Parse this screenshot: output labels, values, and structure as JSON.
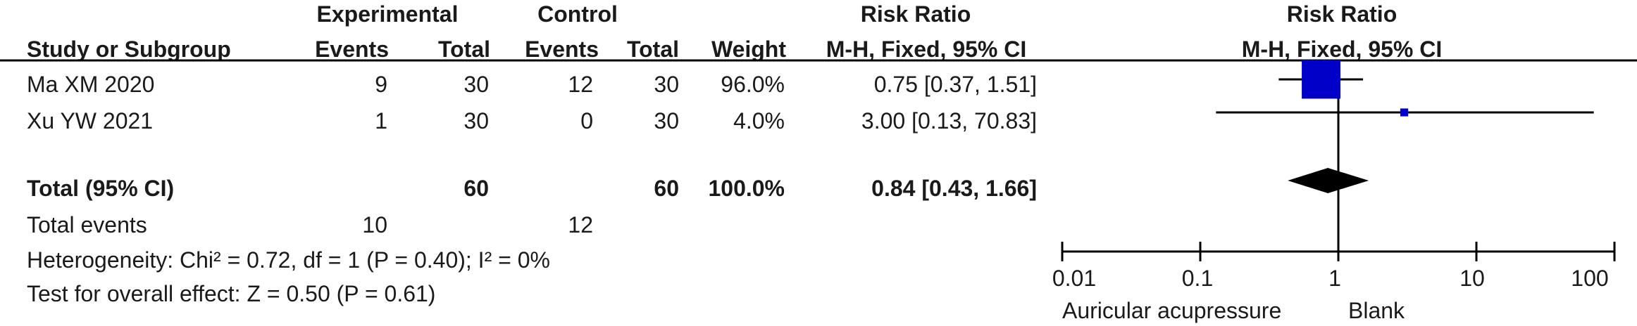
{
  "header": {
    "experimental_group": "Experimental",
    "control_group": "Control",
    "effect_measure": "Risk Ratio",
    "study_col": "Study or Subgroup",
    "events_label": "Events",
    "total_label": "Total",
    "weight_label": "Weight",
    "method": "M-H, Fixed, 95% CI",
    "plot_title": "Risk Ratio",
    "plot_method": "M-H, Fixed, 95% CI"
  },
  "studies": [
    {
      "name": "Ma XM 2020",
      "exp_events": "9",
      "exp_total": "30",
      "ctrl_events": "12",
      "ctrl_total": "30",
      "weight": "96.0%",
      "ci_text": "0.75 [0.37, 1.51]"
    },
    {
      "name": "Xu YW 2021",
      "exp_events": "1",
      "exp_total": "30",
      "ctrl_events": "0",
      "ctrl_total": "30",
      "weight": "4.0%",
      "ci_text": "3.00 [0.13, 70.83]"
    }
  ],
  "total": {
    "label": "Total (95% CI)",
    "exp_total": "60",
    "ctrl_total": "60",
    "weight": "100.0%",
    "ci_text": "0.84 [0.43, 1.66]"
  },
  "total_events": {
    "label": "Total events",
    "exp": "10",
    "ctrl": "12"
  },
  "heterogeneity": "Heterogeneity: Chi² = 0.72, df = 1 (P = 0.40); I² = 0%",
  "overall_effect": "Test for overall effect: Z = 0.50 (P = 0.61)",
  "axis": {
    "ticks": [
      "0.01",
      "0.1",
      "1",
      "10",
      "100"
    ],
    "favours_left": "Auricular acupressure",
    "favours_right": "Blank"
  },
  "colors": {
    "study_marker": "#0000c8",
    "summary_diamond": "#000000",
    "lines": "#000000"
  },
  "chart_data": {
    "type": "forest",
    "scale": "log",
    "xlim": [
      0.01,
      100
    ],
    "null_value": 1,
    "studies": [
      {
        "name": "Ma XM 2020",
        "estimate": 0.75,
        "ci": [
          0.37,
          1.51
        ],
        "weight": 96.0
      },
      {
        "name": "Xu YW 2021",
        "estimate": 3.0,
        "ci": [
          0.13,
          70.83
        ],
        "weight": 4.0
      }
    ],
    "summary": {
      "name": "Total (95% CI)",
      "estimate": 0.84,
      "ci": [
        0.43,
        1.66
      ]
    }
  }
}
